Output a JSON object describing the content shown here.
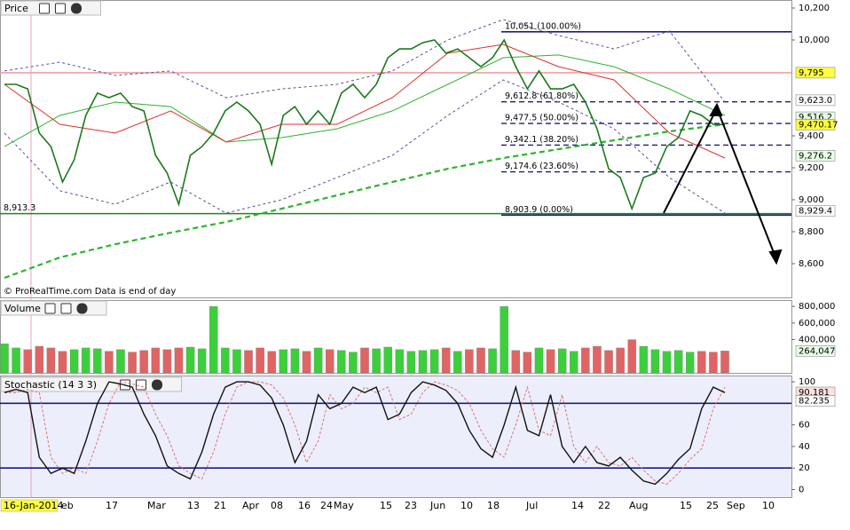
{
  "chart_data": [
    {
      "type": "line",
      "title": "Price",
      "annotation": "© ProRealTime.com  Data is end of day",
      "ylim": [
        8389,
        10250
      ],
      "yticks": [
        {
          "value": 10200,
          "label": "10,200"
        },
        {
          "value": 10000,
          "label": "10,000"
        },
        {
          "value": 9400,
          "label": "9,400"
        },
        {
          "value": 9200,
          "label": "9,200"
        },
        {
          "value": 9000,
          "label": "9,000"
        },
        {
          "value": 8800,
          "label": "8,800"
        },
        {
          "value": 8600,
          "label": "8,600"
        }
      ],
      "series": [
        {
          "color": "#5b4fa0",
          "dash": "3,3",
          "values": [
            9806,
            9861,
            9778,
            9806,
            9639,
            9694,
            9722,
            9806,
            10000,
            10128,
            10028,
            9944,
            10056,
            9611
          ]
        },
        {
          "color": "#5b4fa0",
          "dash": "3,3",
          "values": [
            9417,
            9056,
            8972,
            9111,
            8917,
            9000,
            9139,
            9278,
            9528,
            9750,
            9611,
            9444,
            9139,
            8917
          ]
        },
        {
          "color": "#2bb52b",
          "dash": "6,4",
          "width": 2.2,
          "values": [
            8511,
            8639,
            8722,
            8794,
            8861,
            8944,
            9028,
            9111,
            9194,
            9261,
            9317,
            9372,
            9428,
            9472
          ]
        },
        {
          "color": "#2bb52b",
          "values": [
            9333,
            9528,
            9611,
            9583,
            9361,
            9389,
            9444,
            9556,
            9722,
            9889,
            9906,
            9833,
            9694,
            9528
          ]
        },
        {
          "color": "#e03030",
          "values": [
            9722,
            9472,
            9417,
            9556,
            9361,
            9472,
            9472,
            9639,
            9917,
            9972,
            9833,
            9750,
            9417,
            9261
          ]
        },
        {
          "color": "#1a7a1a",
          "width": 1.6,
          "values": [
            9722,
            9722,
            9694,
            9417,
            9333,
            9111,
            9250,
            9528,
            9667,
            9639,
            9667,
            9583,
            9556,
            9278,
            9167,
            8972,
            9278,
            9333,
            9417,
            9556,
            9611,
            9556,
            9472,
            9222,
            9528,
            9583,
            9472,
            9556,
            9472,
            9667,
            9722,
            9639,
            9722,
            9889,
            9944,
            9944,
            9983,
            10000,
            9917,
            9944,
            9889,
            9833,
            9889,
            10000,
            9833,
            9694,
            9806,
            9694,
            9694,
            9722,
            9611,
            9444,
            9194,
            9139,
            8944,
            9139,
            9167,
            9333,
            9389,
            9556,
            9528,
            9472,
            9470
          ]
        }
      ],
      "lines": [
        {
          "value": 10051,
          "label": "10,051 (100.00%)",
          "color": "#1c1c7a"
        },
        {
          "value": 9612.8,
          "label": "9,612.8 (61.80%)",
          "color": "#1c1c7a",
          "dash": "6,4"
        },
        {
          "value": 9477.5,
          "label": "9,477.5 (50.00%)",
          "color": "#1c1c7a",
          "dash": "6,4"
        },
        {
          "value": 9342.1,
          "label": "9,342.1 (38.20%)",
          "color": "#1c1c7a",
          "dash": "6,4"
        },
        {
          "value": 9174.6,
          "label": "9,174.6 (23.60%)",
          "color": "#1c1c7a",
          "dash": "6,4"
        },
        {
          "value": 8903.9,
          "label": "8,903.9 (0.00%)",
          "color": "#1c1c7a"
        },
        {
          "value": 8913.3,
          "label": "8,913.3",
          "color": "#1a8a1a"
        },
        {
          "value": 9795,
          "color": "#f0a0a0"
        }
      ],
      "tags": [
        {
          "value": 9795,
          "label": "9,795",
          "color": "#ffff40"
        },
        {
          "value": 9623.0,
          "label": "9,623.0",
          "color": "#ffffff"
        },
        {
          "value": 9516.2,
          "label": "9,516.2",
          "color": "#e8ffe8"
        },
        {
          "value": 9470.17,
          "label": "9,470.17",
          "color": "#ffff40"
        },
        {
          "value": 9276.2,
          "label": "9,276.2",
          "color": "#e8ffe8"
        },
        {
          "value": 8929.4,
          "label": "8,929.4",
          "color": "#ffffff"
        }
      ]
    },
    {
      "type": "bar",
      "title": "Volume",
      "ylim": [
        0,
        876000
      ],
      "up_color": "#3ccf3c",
      "down_color": "#e06464",
      "yticks": [
        {
          "value": 800000,
          "label": "800,000"
        },
        {
          "value": 600000,
          "label": "600,000"
        },
        {
          "value": 400000,
          "label": "400,000"
        }
      ],
      "values": [
        350000,
        300000,
        280000,
        320000,
        300000,
        260000,
        280000,
        300000,
        290000,
        260000,
        280000,
        250000,
        270000,
        300000,
        280000,
        300000,
        310000,
        290000,
        800000,
        300000,
        280000,
        270000,
        300000,
        260000,
        280000,
        290000,
        260000,
        300000,
        280000,
        270000,
        250000,
        300000,
        290000,
        310000,
        280000,
        260000,
        270000,
        280000,
        300000,
        260000,
        280000,
        300000,
        290000,
        800000,
        270000,
        250000,
        300000,
        280000,
        290000,
        260000,
        300000,
        320000,
        270000,
        300000,
        400000,
        320000,
        280000,
        260000,
        270000,
        250000,
        260000,
        250000,
        264047
      ],
      "tags": [
        {
          "value": 264047,
          "label": "264,047",
          "color": "#e8ffe8"
        }
      ]
    },
    {
      "type": "line",
      "title": "Stochastic (14 3 3)",
      "ylim": [
        -7,
        105
      ],
      "yticks": [
        100,
        60,
        40,
        20,
        0
      ],
      "series": [
        {
          "color": "#e07070",
          "dash": "3,2",
          "values": [
            90,
            90,
            93,
            90,
            30,
            15,
            20,
            15,
            45,
            80,
            100,
            98,
            95,
            70,
            50,
            22,
            15,
            10,
            35,
            70,
            95,
            100,
            100,
            97,
            85,
            60,
            25,
            45,
            88,
            75,
            80,
            95,
            90,
            95,
            65,
            70,
            90,
            100,
            97,
            92,
            80,
            55,
            38,
            30,
            60,
            95,
            55,
            50,
            88,
            40,
            25,
            40,
            25,
            22,
            30,
            18,
            8,
            5,
            15,
            28,
            38,
            75,
            95
          ]
        },
        {
          "color": "#111",
          "width": 1.4,
          "values": [
            90,
            93,
            90,
            30,
            15,
            20,
            15,
            45,
            80,
            100,
            98,
            95,
            70,
            50,
            22,
            15,
            10,
            35,
            70,
            95,
            100,
            100,
            97,
            85,
            60,
            25,
            45,
            88,
            75,
            80,
            95,
            90,
            95,
            65,
            70,
            90,
            100,
            97,
            92,
            80,
            55,
            38,
            30,
            60,
            95,
            55,
            50,
            88,
            40,
            25,
            40,
            25,
            22,
            30,
            18,
            8,
            5,
            15,
            28,
            38,
            75,
            95,
            90
          ]
        }
      ],
      "lines": [
        {
          "value": 80,
          "color": "#1c1c7a"
        },
        {
          "value": 20,
          "color": "#1c1c7a"
        }
      ],
      "tags": [
        {
          "value": 90.181,
          "label": "90.181",
          "color": "#ffe0e0"
        },
        {
          "value": 82.235,
          "label": "82.235",
          "color": "#ffffff"
        }
      ]
    }
  ],
  "x_labels": [
    "16-Jan-2014",
    "eb",
    "17",
    "Mar",
    "13",
    "21",
    "Apr",
    "08",
    "16",
    "24",
    "May",
    "15",
    "23",
    "Jun",
    "10",
    "18",
    "Jul",
    "14",
    "22",
    "Aug",
    "15",
    "25",
    "Sep",
    "10"
  ]
}
